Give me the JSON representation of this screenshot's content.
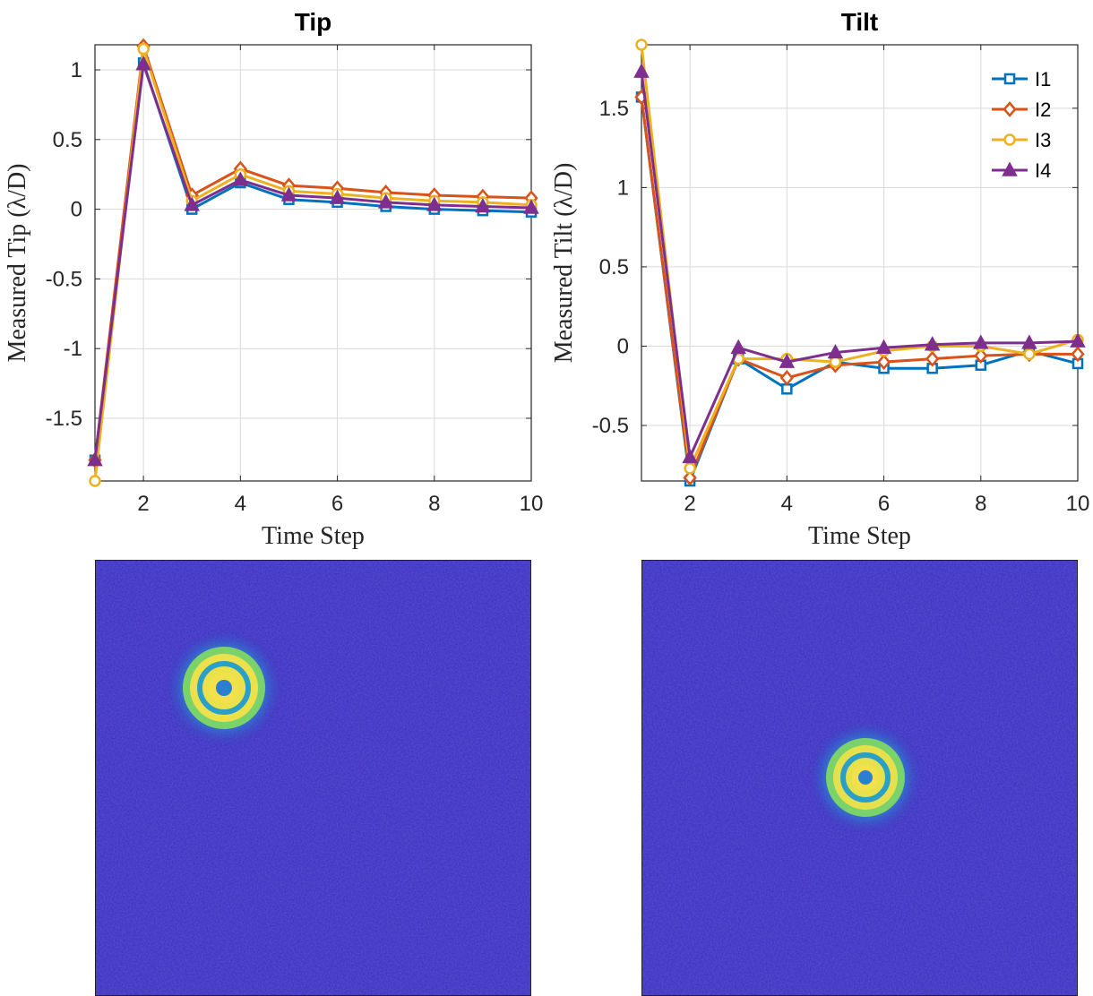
{
  "colors": {
    "series": [
      "#0072BD",
      "#D95319",
      "#EDB120",
      "#7E2F8E"
    ],
    "grid": "#d9d9d9",
    "axis": "#262626",
    "image_background": "#3a2fbf",
    "spot_inner": "#f2e14a",
    "spot_mid": "#7ad36a",
    "spot_outer": "#2aa0c8"
  },
  "chart_data": [
    {
      "type": "line",
      "title": "Tip",
      "xlabel": "Time Step",
      "ylabel": "Measured Tip (λ/D)",
      "xlim": [
        1,
        10
      ],
      "ylim": [
        -1.95,
        1.18
      ],
      "xticks": [
        2,
        4,
        6,
        8,
        10
      ],
      "xtick_labels": [
        "2",
        "4",
        "6",
        "8",
        "10"
      ],
      "yticks": [
        -1.5,
        -1,
        -0.5,
        0,
        0.5,
        1
      ],
      "ytick_labels": [
        "-1.5",
        "-1",
        "-0.5",
        "0",
        "0.5",
        "1"
      ],
      "grid": true,
      "x": [
        1,
        2,
        3,
        4,
        5,
        6,
        7,
        8,
        9,
        10
      ],
      "series": [
        {
          "name": "I1",
          "marker": "square",
          "values": [
            -1.8,
            1.05,
            0.0,
            0.19,
            0.07,
            0.05,
            0.02,
            0.0,
            -0.01,
            -0.02
          ]
        },
        {
          "name": "I2",
          "marker": "diamond",
          "values": [
            -1.8,
            1.17,
            0.1,
            0.29,
            0.17,
            0.15,
            0.12,
            0.1,
            0.09,
            0.08
          ]
        },
        {
          "name": "I3",
          "marker": "circle",
          "values": [
            -1.95,
            1.15,
            0.06,
            0.25,
            0.13,
            0.11,
            0.08,
            0.06,
            0.05,
            0.03
          ]
        },
        {
          "name": "I4",
          "marker": "triangle",
          "values": [
            -1.8,
            1.04,
            0.03,
            0.21,
            0.1,
            0.08,
            0.05,
            0.03,
            0.02,
            0.01
          ]
        }
      ]
    },
    {
      "type": "line",
      "title": "Tilt",
      "xlabel": "Time Step",
      "ylabel": "Measured Tilt (λ/D)",
      "xlim": [
        1,
        10
      ],
      "ylim": [
        -0.85,
        1.9
      ],
      "xticks": [
        2,
        4,
        6,
        8,
        10
      ],
      "xtick_labels": [
        "2",
        "4",
        "6",
        "8",
        "10"
      ],
      "yticks": [
        -0.5,
        0,
        0.5,
        1,
        1.5
      ],
      "ytick_labels": [
        "-0.5",
        "0",
        "0.5",
        "1",
        "1.5"
      ],
      "grid": true,
      "legend": {
        "position": "top-right",
        "entries": [
          "I1",
          "I2",
          "I3",
          "I4"
        ]
      },
      "x": [
        1,
        2,
        3,
        4,
        5,
        6,
        7,
        8,
        9,
        10
      ],
      "series": [
        {
          "name": "I1",
          "marker": "square",
          "values": [
            1.57,
            -0.85,
            -0.08,
            -0.27,
            -0.1,
            -0.14,
            -0.14,
            -0.12,
            -0.03,
            -0.11
          ]
        },
        {
          "name": "I2",
          "marker": "diamond",
          "values": [
            1.57,
            -0.83,
            -0.08,
            -0.2,
            -0.12,
            -0.1,
            -0.08,
            -0.06,
            -0.05,
            -0.05
          ]
        },
        {
          "name": "I3",
          "marker": "circle",
          "values": [
            1.9,
            -0.77,
            -0.08,
            -0.08,
            -0.1,
            -0.03,
            0.0,
            0.0,
            -0.05,
            0.04
          ]
        },
        {
          "name": "I4",
          "marker": "triangle",
          "values": [
            1.73,
            -0.7,
            -0.01,
            -0.1,
            -0.04,
            -0.01,
            0.01,
            0.02,
            0.02,
            0.03
          ]
        }
      ]
    }
  ]
}
